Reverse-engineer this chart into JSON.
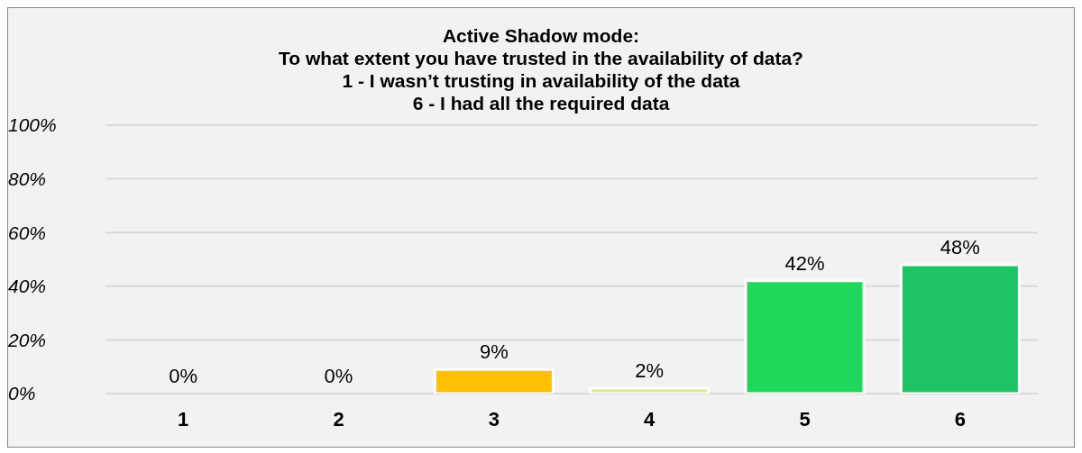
{
  "chart_data": {
    "type": "bar",
    "title": "Active Shadow mode:\nTo what extent you have trusted in the availability of data?\n1 - I wasn’t trusting in availability of the data\n6 - I had all the required data",
    "categories": [
      "1",
      "2",
      "3",
      "4",
      "5",
      "6"
    ],
    "values": [
      0,
      0,
      9,
      2,
      42,
      48
    ],
    "colors": [
      "#e03c31",
      "#f08030",
      "#ffc000",
      "#d9ea8c",
      "#1fd75a",
      "#1ec463"
    ],
    "value_labels": [
      "0%",
      "0%",
      "9%",
      "2%",
      "42%",
      "48%"
    ],
    "ylim": [
      0,
      100
    ],
    "yticks": [
      {
        "value": 0,
        "label": "0%"
      },
      {
        "value": 20,
        "label": "20%"
      },
      {
        "value": 40,
        "label": "40%"
      },
      {
        "value": 60,
        "label": "60%"
      },
      {
        "value": 80,
        "label": "80%"
      },
      {
        "value": 100,
        "label": "100%"
      }
    ],
    "grid": "y",
    "legend": false
  }
}
